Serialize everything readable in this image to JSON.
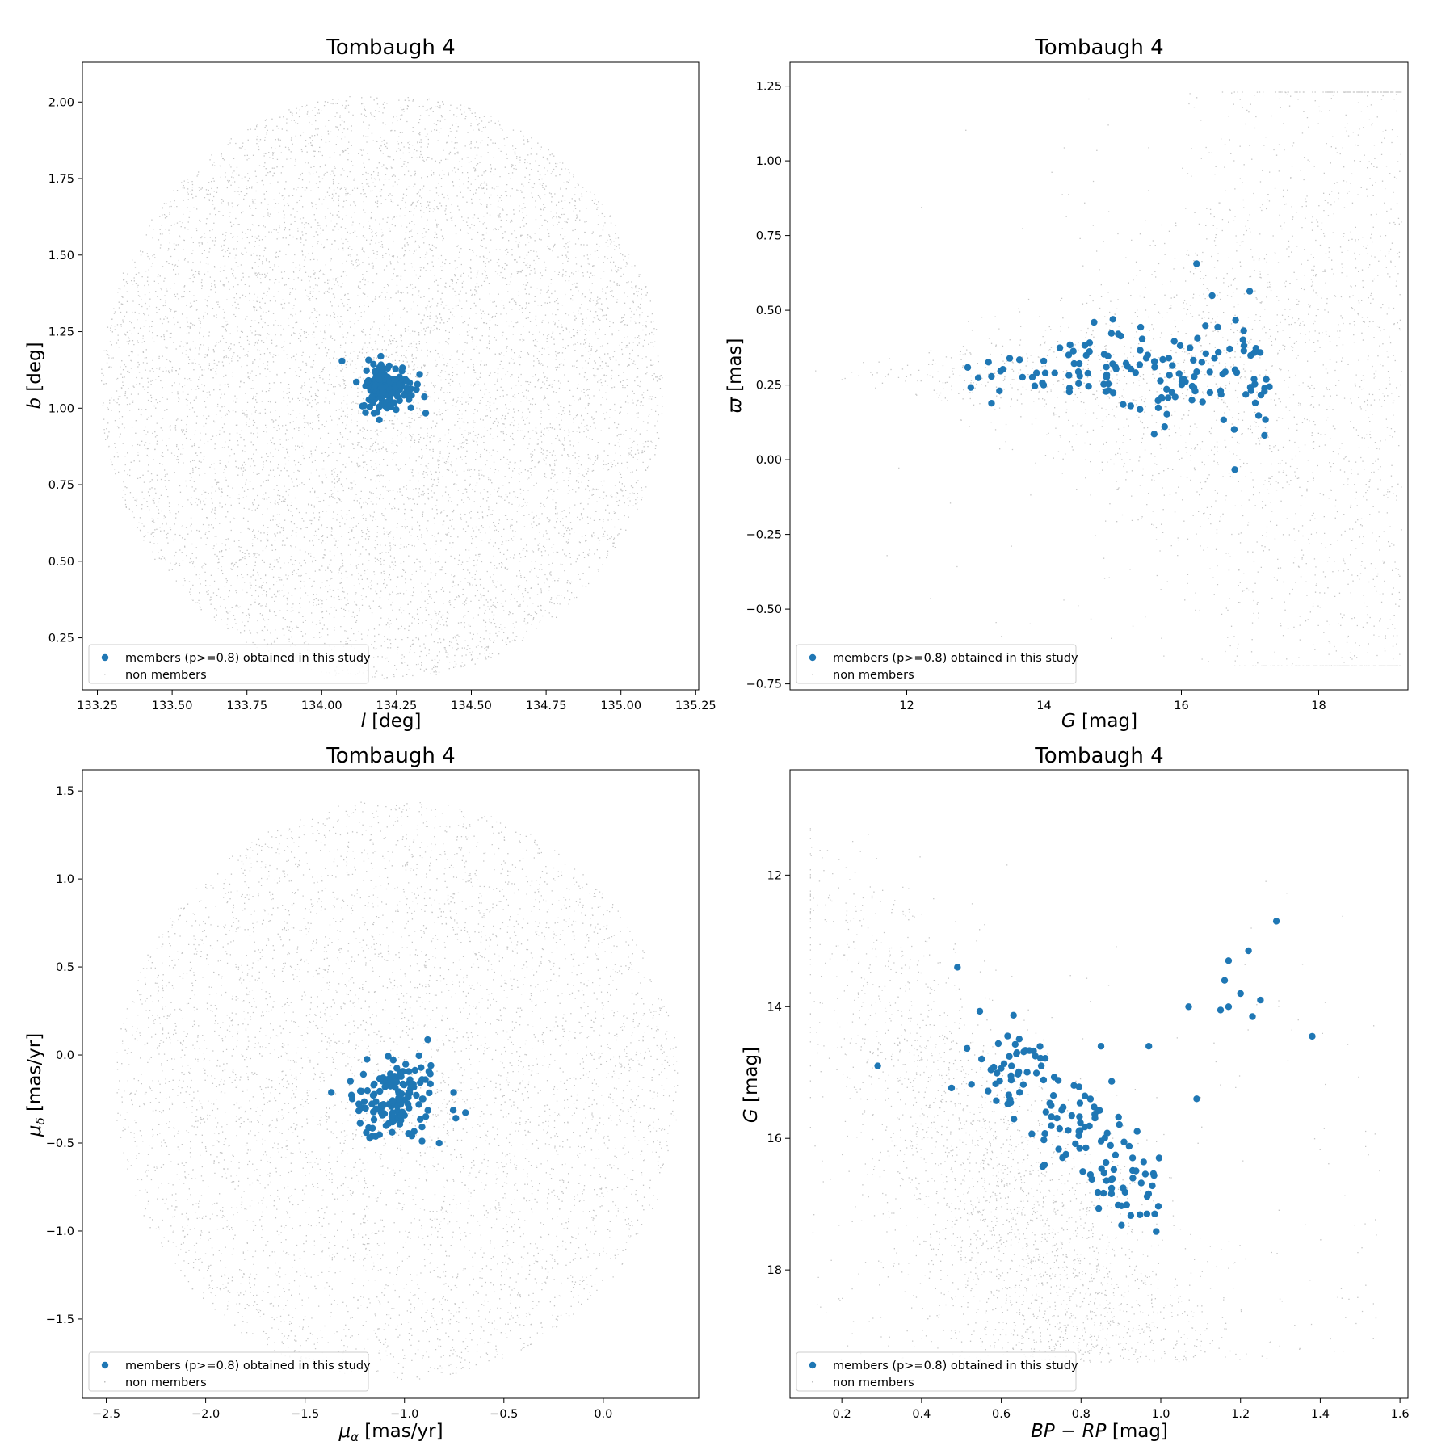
{
  "colors": {
    "members": "#1f77b4",
    "nonmembers": "#808080",
    "frame": "#000000",
    "legend_border": "#cccccc"
  },
  "chart_data": [
    {
      "type": "scatter",
      "title": "Tombaugh 4",
      "xlabel": "l [deg]",
      "ylabel": "b [deg]",
      "xlim": [
        133.2,
        135.26
      ],
      "ylim": [
        0.08,
        2.13
      ],
      "xticks": [
        "133.25",
        "133.50",
        "133.75",
        "134.00",
        "134.25",
        "134.50",
        "134.75",
        "135.00",
        "135.25"
      ],
      "yticks": [
        "0.25",
        "0.50",
        "0.75",
        "1.00",
        "1.25",
        "1.50",
        "1.75",
        "2.00"
      ],
      "legend": {
        "position": "lower-left",
        "entries": [
          "members (p>=0.8) obtained in this study",
          "non members"
        ]
      },
      "members": {
        "center": [
          134.22,
          1.07
        ],
        "spread": [
          0.045,
          0.04
        ],
        "n": 150
      },
      "nonmembers": {
        "shape": "disk",
        "center": [
          134.2,
          1.07
        ],
        "radius": [
          0.94,
          0.96
        ],
        "n": 14000
      }
    },
    {
      "type": "scatter",
      "title": "Tombaugh 4",
      "xlabel": "G [mag]",
      "ylabel": "ϖ [mas]",
      "xlim": [
        10.3,
        19.3
      ],
      "ylim": [
        -0.77,
        1.33
      ],
      "xticks": [
        "12",
        "14",
        "16",
        "18"
      ],
      "yticks": [
        "−0.75",
        "−0.50",
        "−0.25",
        "0.00",
        "0.25",
        "0.50",
        "0.75",
        "1.00",
        "1.25"
      ],
      "legend": {
        "position": "lower-left",
        "entries": [
          "members (p>=0.8) obtained in this study",
          "non members"
        ]
      },
      "members": {
        "x_range": [
          12.7,
          17.3
        ],
        "y_center": 0.29,
        "y_spread": 0.07,
        "n": 150
      },
      "nonmembers": {
        "shape": "funnel",
        "x_range": [
          10.4,
          19.2
        ],
        "y_center": 0.28,
        "y_clip": [
          -0.69,
          1.23
        ],
        "n": 16000
      }
    },
    {
      "type": "scatter",
      "title": "Tombaugh 4",
      "xlabel": "μα [mas/yr]",
      "ylabel": "μδ [mas/yr]",
      "xlim": [
        -2.62,
        0.48
      ],
      "ylim": [
        -1.95,
        1.62
      ],
      "xticks": [
        "−2.5",
        "−2.0",
        "−1.5",
        "−1.0",
        "−0.5",
        "0.0"
      ],
      "yticks": [
        "−1.5",
        "−1.0",
        "−0.5",
        "0.0",
        "0.5",
        "1.0",
        "1.5"
      ],
      "legend": {
        "position": "lower-left",
        "entries": [
          "members (p>=0.8) obtained in this study",
          "non members"
        ]
      },
      "members": {
        "center": [
          -1.05,
          -0.24
        ],
        "spread": [
          0.12,
          0.13
        ],
        "n": 150
      },
      "nonmembers": {
        "shape": "disk",
        "center": [
          -1.04,
          -0.2
        ],
        "radius": [
          1.42,
          1.65
        ],
        "n": 14000
      }
    },
    {
      "type": "scatter",
      "title": "Tombaugh 4",
      "xlabel": "BP − RP [mag]",
      "ylabel": "G [mag]",
      "xlim": [
        0.07,
        1.62
      ],
      "ylim": [
        19.95,
        10.4
      ],
      "xticks": [
        "0.2",
        "0.4",
        "0.6",
        "0.8",
        "1.0",
        "1.2",
        "1.4",
        "1.6"
      ],
      "yticks": [
        "12",
        "14",
        "16",
        "18"
      ],
      "legend": {
        "position": "lower-left",
        "entries": [
          "members (p>=0.8) obtained in this study",
          "non members"
        ]
      },
      "members": {
        "sequence_start": [
          0.55,
          14.5
        ],
        "sequence_end": [
          0.98,
          17.0
        ],
        "n": 140,
        "extra_points": [
          [
            0.29,
            14.9
          ],
          [
            0.49,
            13.4
          ],
          [
            1.29,
            12.7
          ],
          [
            1.22,
            13.15
          ],
          [
            1.17,
            13.3
          ],
          [
            1.16,
            13.6
          ],
          [
            1.2,
            13.8
          ],
          [
            1.25,
            13.9
          ],
          [
            1.17,
            14.0
          ],
          [
            1.15,
            14.05
          ],
          [
            1.23,
            14.15
          ],
          [
            1.07,
            14.0
          ],
          [
            1.38,
            14.45
          ],
          [
            1.09,
            15.4
          ],
          [
            0.97,
            14.6
          ],
          [
            0.85,
            14.6
          ]
        ]
      },
      "nonmembers": {
        "shape": "cmd",
        "x_range": [
          0.12,
          1.55
        ],
        "y_range": [
          11.0,
          19.4
        ],
        "n": 16000
      }
    }
  ]
}
